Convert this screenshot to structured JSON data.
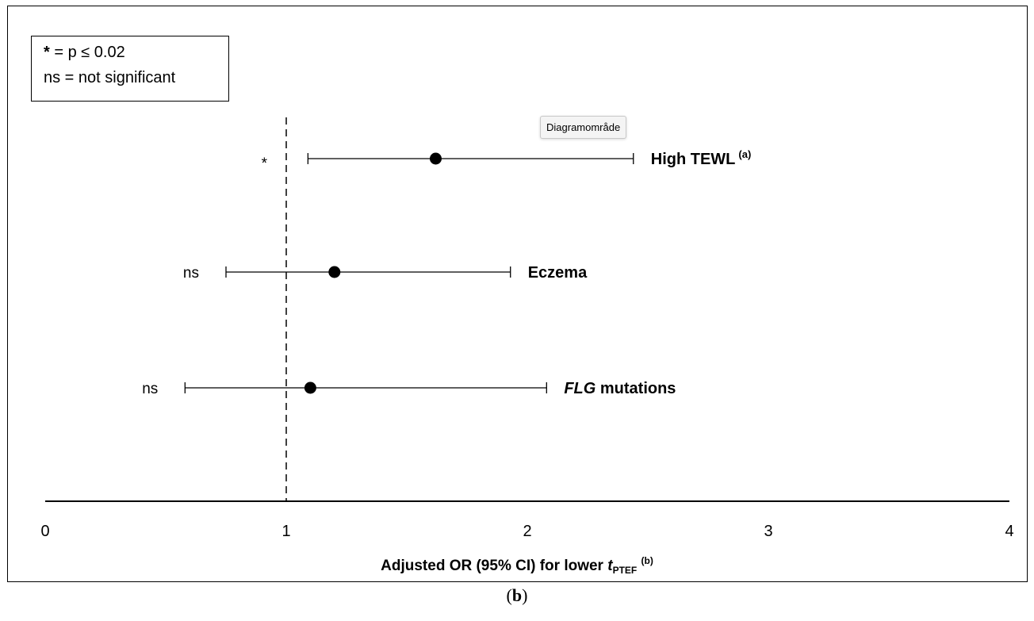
{
  "legend": {
    "star_symbol": "*",
    "star_text": " = p ≤ 0.02",
    "ns_text": "ns = not significant"
  },
  "tooltip": "Diagramområde",
  "panel_label": "b",
  "chart_data": {
    "type": "scatter",
    "subtype": "forest plot",
    "xlim": [
      0,
      4
    ],
    "xticks": [
      "0",
      "1",
      "2",
      "3",
      "4"
    ],
    "reference_line": 1,
    "reference_line_style": "dashed",
    "grid": false,
    "xlabel": {
      "text": "Adjusted OR (95% CI) for lower ",
      "symbol": "t",
      "subscript": "PTEF",
      "superscript": "(b)"
    },
    "rows": [
      {
        "label": "High TEWL",
        "italic_part": "",
        "superscript": "(a)",
        "or": 1.62,
        "ci_low": 1.09,
        "ci_high": 2.44,
        "significance": "*"
      },
      {
        "label": "Eczema",
        "italic_part": "",
        "superscript": "",
        "or": 1.2,
        "ci_low": 0.75,
        "ci_high": 1.93,
        "significance": "ns"
      },
      {
        "label": " mutations",
        "italic_part": "FLG",
        "superscript": "",
        "or": 1.1,
        "ci_low": 0.58,
        "ci_high": 2.08,
        "significance": "ns"
      }
    ]
  }
}
